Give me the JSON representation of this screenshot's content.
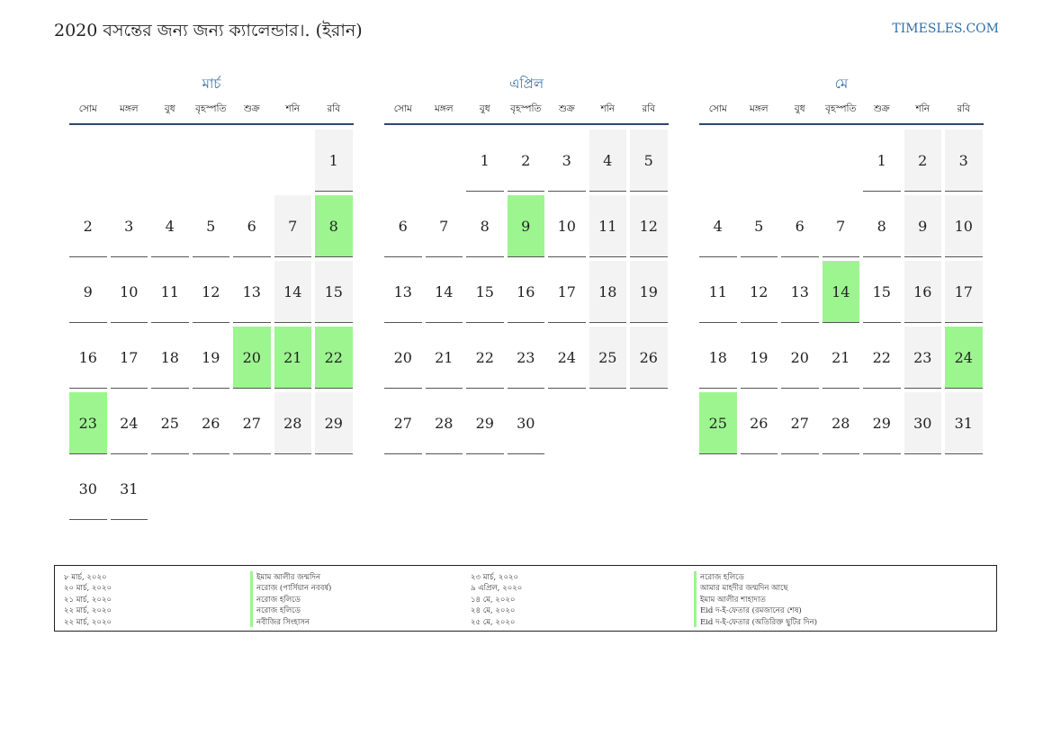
{
  "header": {
    "title": "2020 বসন্তের জন্য জন্য ক্যালেন্ডার।. (ইরান)",
    "site": "TIMESLES.COM"
  },
  "weekdays": [
    "সোম",
    "মঙ্গল",
    "বুধ",
    "বৃহস্পতি",
    "শুক্র",
    "শনি",
    "রবি"
  ],
  "months": [
    {
      "name": "মার্চ",
      "offset": 6,
      "days": 31,
      "holidays": [
        8,
        20,
        21,
        22,
        23
      ]
    },
    {
      "name": "এপ্রিল",
      "offset": 2,
      "days": 30,
      "holidays": [
        9
      ]
    },
    {
      "name": "মে",
      "offset": 4,
      "days": 31,
      "holidays": [
        14,
        24,
        25
      ]
    }
  ],
  "legend": [
    {
      "date": "৮ মার্চ, ২০২০",
      "name": "ইমাম আলীর জন্মদিন"
    },
    {
      "date": "২০ মার্চ, ২০২০",
      "name": "নরোজ (পার্সিয়ান নববর্ষ)"
    },
    {
      "date": "২১ মার্চ, ২০২০",
      "name": "নরোজ হলিডে"
    },
    {
      "date": "২২ মার্চ, ২০২০",
      "name": "নরোজ হলিডে"
    },
    {
      "date": "২২ মার্চ, ২০২০",
      "name": "নবীজির সিংহাসন"
    },
    {
      "date": "২৩ মার্চ, ২০২০",
      "name": "নরোজ হলিডে"
    },
    {
      "date": "৯ এপ্রিল, ২০২০",
      "name": "আমার মাহদীর জন্মদিন আছে"
    },
    {
      "date": "১৪ মে, ২০২০",
      "name": "ইমাম আলীর শাহাদাত"
    },
    {
      "date": "২৪ মে, ২০২০",
      "name": "Eid দ-ই-ফেতার (রমজানের শেষ)"
    },
    {
      "date": "২৫ মে, ২০২০",
      "name": "Eid দ-ই-ফেতার (অতিরিক্ত ছুটির দিন)"
    }
  ],
  "colors": {
    "accent": "#2f6fa7",
    "holiday": "#9cf58f",
    "weekend": "#f3f3f3"
  }
}
